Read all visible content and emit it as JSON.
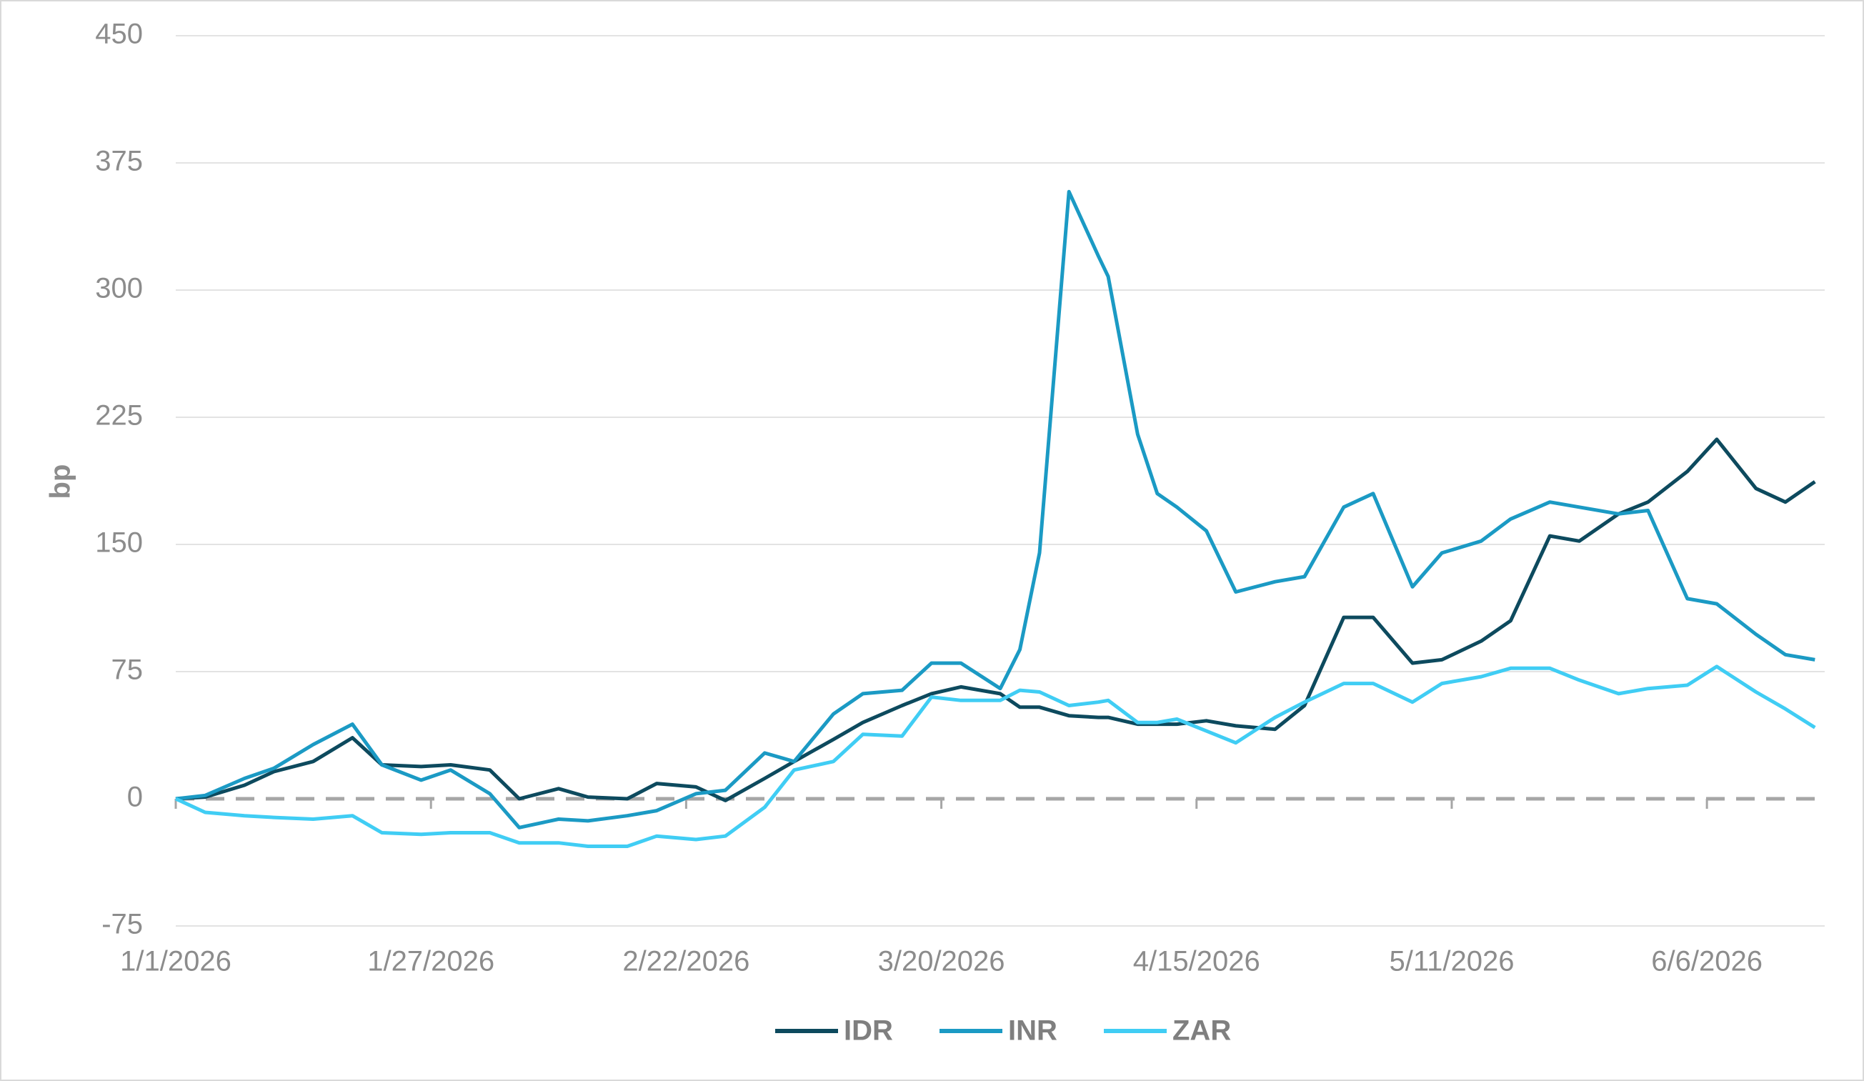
{
  "chart_data": {
    "type": "line",
    "y_label": "bp",
    "x": [
      "1/1/2026",
      "1/4/2026",
      "1/8/2026",
      "1/11/2026",
      "1/15/2026",
      "1/19/2026",
      "1/22/2026",
      "1/26/2026",
      "1/29/2026",
      "2/2/2026",
      "2/5/2026",
      "2/9/2026",
      "2/12/2026",
      "2/16/2026",
      "2/19/2026",
      "2/23/2026",
      "2/26/2026",
      "3/2/2026",
      "3/5/2026",
      "3/9/2026",
      "3/12/2026",
      "3/16/2026",
      "3/19/2026",
      "3/22/2026",
      "3/26/2026",
      "3/28/2026",
      "3/30/2026",
      "4/2/2026",
      "4/5/2026",
      "4/6/2026",
      "4/9/2026",
      "4/11/2026",
      "4/13/2026",
      "4/16/2026",
      "4/19/2026",
      "4/23/2026",
      "4/26/2026",
      "4/30/2026",
      "5/3/2026",
      "5/7/2026",
      "5/10/2026",
      "5/14/2026",
      "5/17/2026",
      "5/21/2026",
      "5/24/2026",
      "5/28/2026",
      "5/31/2026",
      "6/4/2026",
      "6/7/2026",
      "6/11/2026",
      "6/14/2026",
      "6/17/2026"
    ],
    "series": [
      {
        "name": "IDR",
        "color": "#0d4a5e",
        "values": [
          0,
          1,
          8,
          16,
          22,
          36,
          20,
          19,
          20,
          17,
          0,
          6,
          1,
          0,
          9,
          7,
          -1,
          12,
          22,
          35,
          45,
          55,
          62,
          66,
          62,
          54,
          54,
          49,
          48,
          48,
          44,
          44,
          44,
          46,
          43,
          41,
          55,
          107,
          107,
          80,
          82,
          93,
          105,
          155,
          152,
          168,
          175,
          193,
          212,
          183,
          175,
          187
        ]
      },
      {
        "name": "INR",
        "color": "#1b9ac4",
        "values": [
          0,
          2,
          12,
          18,
          32,
          44,
          20,
          11,
          17,
          3,
          -17,
          -12,
          -13,
          -10,
          -7,
          3,
          5,
          27,
          22,
          50,
          62,
          64,
          80,
          80,
          65,
          88,
          145,
          358,
          320,
          308,
          215,
          180,
          172,
          158,
          122,
          128,
          131,
          172,
          180,
          125,
          145,
          152,
          165,
          175,
          172,
          168,
          170,
          118,
          115,
          97,
          85,
          82
        ]
      },
      {
        "name": "ZAR",
        "color": "#40cdf4",
        "values": [
          0,
          -8,
          -10,
          -11,
          -12,
          -10,
          -20,
          -21,
          -20,
          -20,
          -26,
          -26,
          -28,
          -28,
          -22,
          -24,
          -22,
          -5,
          17,
          22,
          38,
          37,
          60,
          58,
          58,
          64,
          63,
          55,
          57,
          58,
          45,
          45,
          47,
          40,
          33,
          48,
          57,
          68,
          68,
          57,
          68,
          72,
          77,
          77,
          70,
          62,
          65,
          67,
          78,
          63,
          53,
          42
        ]
      }
    ],
    "xlim": [
      "1/1/2026",
      "6/18/2026"
    ],
    "xticks": [
      "1/1/2026",
      "1/27/2026",
      "2/22/2026",
      "3/20/2026",
      "4/15/2026",
      "5/11/2026",
      "6/6/2026"
    ],
    "ylim": [
      -75,
      450
    ],
    "yticks": [
      -75,
      0,
      75,
      150,
      225,
      300,
      375,
      450
    ],
    "grid": true,
    "legend": "bottom"
  }
}
